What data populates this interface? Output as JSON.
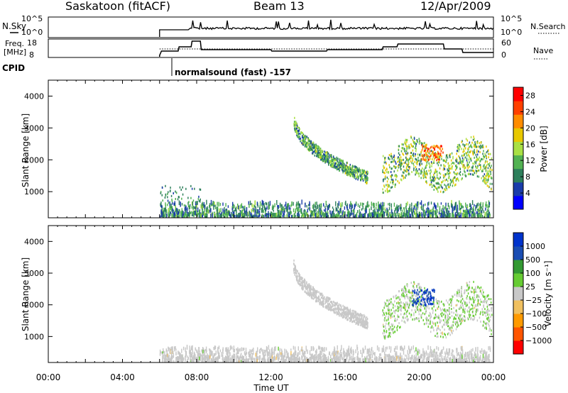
{
  "header": {
    "station": "Saskatoon (fitACF)",
    "beam": "Beam 13",
    "date": "12/Apr/2009"
  },
  "status_panels": {
    "nsky_label": "N.Sky",
    "nsky_ticks": [
      "10^5",
      "10^0"
    ],
    "nsearch_label": "N.Search",
    "nsearch_ticks": [
      "10^5",
      "10^0"
    ],
    "freq_label": "Freq.",
    "freq_unit": "[MHz]",
    "freq_ticks": [
      "18",
      "8"
    ],
    "nave_label": "Nave",
    "nave_ticks": [
      "60",
      "0"
    ],
    "cpid_label": "CPID",
    "cpid_text": "normalsound (fast) -157"
  },
  "chart_data": [
    {
      "type": "heatmap",
      "title": "",
      "xlabel": "",
      "ylabel": "Slant Range [km]",
      "x_ticks": [
        "00:00",
        "04:00",
        "08:00",
        "12:00",
        "16:00",
        "20:00",
        "00:00"
      ],
      "xlim_hours": [
        0,
        24
      ],
      "ylim": [
        180,
        4500
      ],
      "y_ticks": [
        1000,
        2000,
        3000,
        4000
      ],
      "colorbar": {
        "label": "Power [dB]",
        "ticks": [
          4,
          8,
          12,
          16,
          20,
          24,
          28
        ],
        "range": [
          0,
          30
        ],
        "colors": [
          "#0000ff",
          "#1a3caa",
          "#2d7f5b",
          "#52b252",
          "#a9e044",
          "#e8c800",
          "#ff8c00",
          "#ff4000",
          "#ff0000"
        ]
      },
      "features": [
        {
          "desc": "ground scatter band",
          "t_start": 6.0,
          "t_end": 23.8,
          "range": [
            180,
            600
          ],
          "power": 8
        },
        {
          "desc": "early patches",
          "t_start": 6.0,
          "t_end": 8.2,
          "range": [
            600,
            1150
          ],
          "power": 6
        },
        {
          "desc": "descending echo arc",
          "t_start": 13.2,
          "t_end": 17.2,
          "range_start": 3300,
          "range_end": 1400,
          "power": 12
        },
        {
          "desc": "evening scatter",
          "t_start": 18.0,
          "t_end": 23.9,
          "range": [
            700,
            3000
          ],
          "power": 14
        },
        {
          "desc": "strong echo near 20:40",
          "t": 20.7,
          "range": 2200,
          "power": 28
        }
      ]
    },
    {
      "type": "heatmap",
      "title": "",
      "xlabel": "Time UT",
      "ylabel": "Slant Range [km]",
      "x_ticks": [
        "00:00",
        "04:00",
        "08:00",
        "12:00",
        "16:00",
        "20:00",
        "00:00"
      ],
      "xlim_hours": [
        0,
        24
      ],
      "ylim": [
        180,
        4500
      ],
      "y_ticks": [
        1000,
        2000,
        3000,
        4000
      ],
      "colorbar": {
        "label": "Velocity [m s⁻¹]",
        "ticks": [
          "1000",
          "500",
          "100",
          "25",
          "−25",
          "−100",
          "−500",
          "−1000"
        ],
        "range": [
          -1000,
          1000
        ],
        "colors": [
          "#ff0000",
          "#ff5500",
          "#ff9a00",
          "#f0c060",
          "#c8c8c8",
          "#66cc33",
          "#339933",
          "#1a4db3",
          "#0033cc"
        ]
      },
      "features": [
        {
          "desc": "ground scatter band",
          "t_start": 6.0,
          "t_end": 23.8,
          "range": [
            180,
            600
          ],
          "velocity": 0
        },
        {
          "desc": "descending echo arc",
          "t_start": 13.2,
          "t_end": 17.2,
          "range_start": 3300,
          "range_end": 1400,
          "velocity": 0
        },
        {
          "desc": "evening scatter",
          "t_start": 18.0,
          "t_end": 23.9,
          "range": [
            700,
            3000
          ],
          "velocity": 200
        },
        {
          "desc": "blue echoes near 20:00",
          "t": 20.2,
          "range": 2200,
          "velocity": 900
        }
      ]
    }
  ]
}
